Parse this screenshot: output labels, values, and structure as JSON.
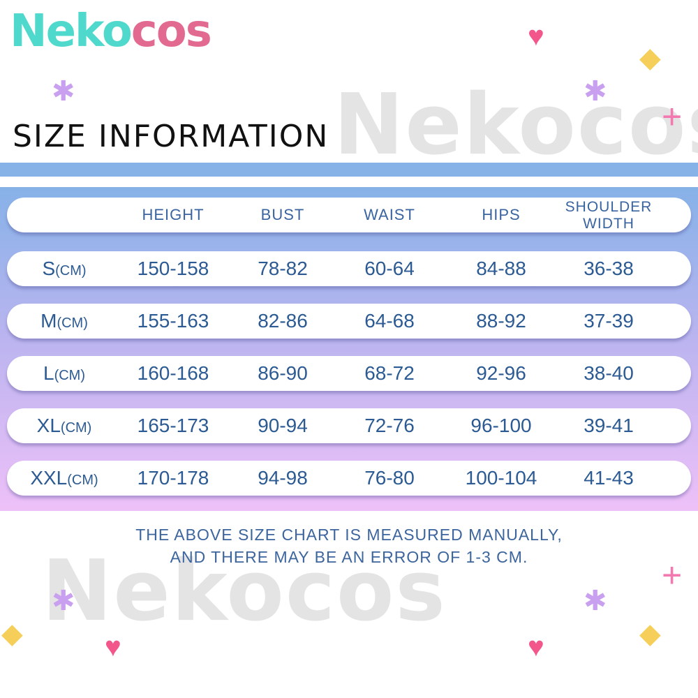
{
  "brand": {
    "logo_part1": "Neko",
    "logo_part2": "cos",
    "watermark": "Nekocos"
  },
  "title": "SIZE INFORMATION",
  "table": {
    "headers": [
      "",
      "HEIGHT",
      "BUST",
      "WAIST",
      "HIPS",
      "SHOULDER WIDTH"
    ],
    "rows": [
      {
        "size": "S",
        "unit": "(CM)",
        "height": "150-158",
        "bust": "78-82",
        "waist": "60-64",
        "hips": "84-88",
        "shoulder": "36-38"
      },
      {
        "size": "M",
        "unit": "(CM)",
        "height": "155-163",
        "bust": "82-86",
        "waist": "64-68",
        "hips": "88-92",
        "shoulder": "37-39"
      },
      {
        "size": "L",
        "unit": "(CM)",
        "height": "160-168",
        "bust": "86-90",
        "waist": "68-72",
        "hips": "92-96",
        "shoulder": "38-40"
      },
      {
        "size": "XL",
        "unit": "(CM)",
        "height": "165-173",
        "bust": "90-94",
        "waist": "72-76",
        "hips": "96-100",
        "shoulder": "39-41"
      },
      {
        "size": "XXL",
        "unit": "(CM)",
        "height": "170-178",
        "bust": "94-98",
        "waist": "76-80",
        "hips": "100-104",
        "shoulder": "41-43"
      }
    ]
  },
  "note": {
    "line1": "THE ABOVE SIZE CHART IS MEASURED MANUALLY,",
    "line2": "AND THERE MAY BE AN ERROR OF 1-3 CM."
  },
  "colors": {
    "teal": "#4fd8cc",
    "pink": "#e26a90",
    "text": "#2c5a92",
    "band": "#86b2e8",
    "gradient_end": "#eec0f8"
  }
}
